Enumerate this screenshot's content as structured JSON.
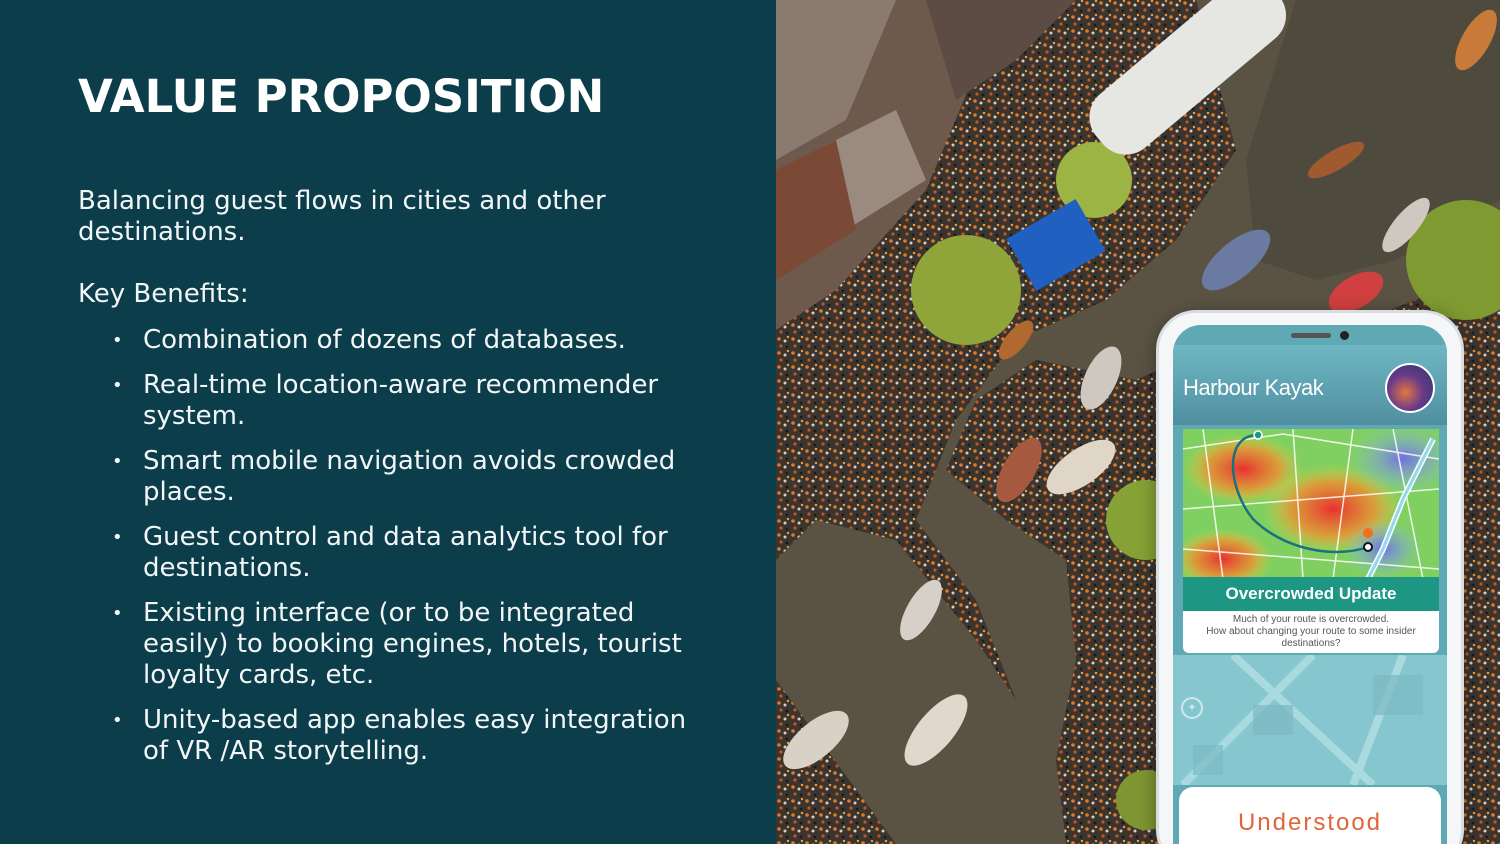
{
  "slide": {
    "title": "VALUE PROPOSITION",
    "intro": "Balancing guest flows in cities and other destinations.",
    "benefits_heading": "Key Benefits:",
    "bullet_char": "•",
    "benefits": [
      "Combination of dozens of databases.",
      "Real-time location-aware recommender system.",
      "Smart mobile navigation avoids crowded places.",
      "Guest control and data analytics tool for destinations.",
      "Existing interface (or to be integrated easily) to booking engines, hotels, tourist loyalty cards, etc.",
      "Unity-based app enables easy integration of VR /AR storytelling."
    ]
  },
  "app": {
    "title": "Harbour Kayak",
    "banner": "Overcrowded Update",
    "message_line1": "Much of your route is overcrowded.",
    "message_line2": "How about changing your route to some insider destinations?",
    "action_label": "Understood"
  },
  "colors": {
    "panel_bg": "#0c3d4a",
    "banner_teal": "#1d9684",
    "action_orange": "#e2643a"
  },
  "icons": {
    "compass": "compass-icon",
    "route_start": "map-pin-icon",
    "route_end": "location-marker-icon"
  }
}
